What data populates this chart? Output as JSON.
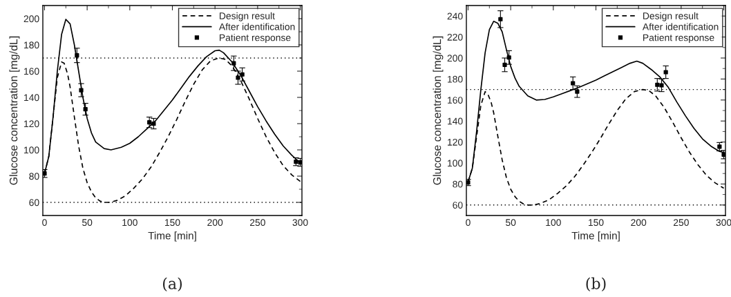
{
  "chart_data": [
    {
      "type": "line",
      "xlabel": "Time [min]",
      "ylabel": "Glucose concentration [mg/dL]",
      "xlim": [
        -2,
        302
      ],
      "ylim": [
        50,
        210
      ],
      "xticks": [
        0,
        50,
        100,
        150,
        200,
        250,
        300
      ],
      "yticks": [
        60,
        80,
        100,
        120,
        140,
        160,
        180,
        200
      ],
      "grid": false,
      "legend": "top right",
      "annotations": [
        "(a)"
      ],
      "ref_lines": [
        {
          "axis": "y",
          "value": 170,
          "color": "#000000",
          "line_style": "dotted"
        },
        {
          "axis": "y",
          "value": 60,
          "color": "#000000",
          "line_style": "dotted"
        }
      ],
      "series": [
        {
          "name": "Design result",
          "color": "#000000",
          "line_style": "dashed",
          "marker": "none",
          "x": [
            0,
            5,
            10,
            15,
            20,
            23,
            27,
            30,
            35,
            40,
            45,
            50,
            55,
            60,
            65,
            70,
            77,
            85,
            95,
            105,
            115,
            125,
            135,
            145,
            155,
            165,
            175,
            185,
            195,
            205,
            212,
            220,
            230,
            240,
            250,
            260,
            270,
            280,
            290,
            300
          ],
          "values": [
            82,
            95,
            125,
            155,
            167,
            166,
            158,
            148,
            125,
            103,
            86,
            75,
            68,
            63.5,
            61,
            60,
            60,
            61.5,
            65,
            71,
            78,
            87,
            98,
            110,
            123,
            137,
            150,
            161,
            168,
            170,
            169,
            164,
            153,
            139,
            124,
            110,
            98,
            88,
            81,
            76
          ]
        },
        {
          "name": "After identification",
          "color": "#000000",
          "line_style": "solid",
          "marker": "none",
          "x": [
            0,
            5,
            10,
            15,
            20,
            25,
            30,
            35,
            40,
            45,
            50,
            55,
            60,
            70,
            78,
            90,
            100,
            110,
            120,
            130,
            140,
            150,
            160,
            170,
            180,
            190,
            200,
            205,
            210,
            220,
            230,
            240,
            250,
            260,
            270,
            280,
            290,
            300
          ],
          "values": [
            82,
            95,
            125,
            160,
            188,
            199.5,
            196,
            180,
            160,
            140,
            124,
            113,
            106,
            101,
            100,
            102,
            105,
            110,
            116,
            122,
            130,
            138,
            147,
            156,
            164,
            171,
            175.5,
            176,
            174,
            167,
            157,
            145,
            133,
            122,
            112,
            103,
            96,
            90
          ]
        },
        {
          "name": "Patient response",
          "type": "scatter",
          "color": "#000000",
          "marker": "square",
          "x": [
            0,
            38,
            43,
            48,
            123,
            128,
            222,
            227,
            232,
            295,
            300
          ],
          "values": [
            82,
            172,
            145.5,
            131,
            121,
            120,
            166,
            155,
            157.5,
            91,
            90.5
          ],
          "errors": [
            3,
            5.5,
            5,
            4.5,
            4,
            4,
            5.5,
            5,
            5,
            3,
            3
          ]
        }
      ]
    },
    {
      "type": "line",
      "xlabel": "Time [min]",
      "ylabel": "Glucose concentration [mg/dL]",
      "xlim": [
        -2,
        302
      ],
      "ylim": [
        50,
        250
      ],
      "xticks": [
        0,
        50,
        100,
        150,
        200,
        250,
        300
      ],
      "yticks": [
        60,
        80,
        100,
        120,
        140,
        160,
        180,
        200,
        220,
        240
      ],
      "grid": false,
      "legend": "top right",
      "annotations": [
        "(b)"
      ],
      "ref_lines": [
        {
          "axis": "y",
          "value": 170,
          "color": "#000000",
          "line_style": "dotted"
        },
        {
          "axis": "y",
          "value": 60,
          "color": "#000000",
          "line_style": "dotted"
        }
      ],
      "series": [
        {
          "name": "Design result",
          "color": "#000000",
          "line_style": "dashed",
          "marker": "none",
          "x": [
            0,
            5,
            10,
            15,
            20,
            23,
            27,
            30,
            35,
            40,
            45,
            50,
            55,
            60,
            65,
            70,
            77,
            85,
            95,
            105,
            115,
            125,
            135,
            145,
            155,
            165,
            175,
            185,
            195,
            205,
            212,
            220,
            230,
            240,
            250,
            260,
            270,
            280,
            290,
            300
          ],
          "values": [
            82,
            95,
            125,
            155,
            168,
            166,
            158,
            148,
            125,
            103,
            86,
            75,
            68,
            63.5,
            61,
            60,
            60,
            61.5,
            65,
            71,
            78,
            87,
            98,
            110,
            123,
            137,
            150,
            161,
            168,
            170,
            169,
            164,
            153,
            139,
            124,
            110,
            98,
            88,
            81,
            76
          ]
        },
        {
          "name": "After identification",
          "color": "#000000",
          "line_style": "solid",
          "marker": "none",
          "x": [
            0,
            5,
            10,
            15,
            20,
            25,
            30,
            35,
            40,
            45,
            50,
            55,
            60,
            70,
            80,
            90,
            100,
            110,
            120,
            130,
            140,
            150,
            160,
            170,
            180,
            190,
            198,
            205,
            215,
            225,
            235,
            245,
            255,
            265,
            275,
            285,
            295,
            300
          ],
          "values": [
            82,
            95,
            130,
            170,
            205,
            227,
            235,
            233,
            225,
            208,
            192,
            181,
            173,
            164,
            160,
            160.5,
            163,
            166,
            169,
            172,
            175.5,
            179,
            183,
            187,
            191,
            195,
            197,
            195,
            189,
            182,
            172,
            158,
            145,
            133,
            123,
            116,
            111,
            110
          ]
        },
        {
          "name": "Patient response",
          "type": "scatter",
          "color": "#000000",
          "marker": "square",
          "x": [
            0,
            38,
            43,
            48,
            123,
            128,
            222,
            227,
            232,
            295,
            300
          ],
          "values": [
            81.5,
            237,
            193.5,
            200.5,
            176,
            168,
            174.5,
            174,
            186.5,
            115.5,
            108
          ],
          "errors": [
            3,
            8,
            6.5,
            6.5,
            6,
            5.5,
            6,
            6,
            6,
            4,
            4
          ]
        }
      ]
    }
  ]
}
